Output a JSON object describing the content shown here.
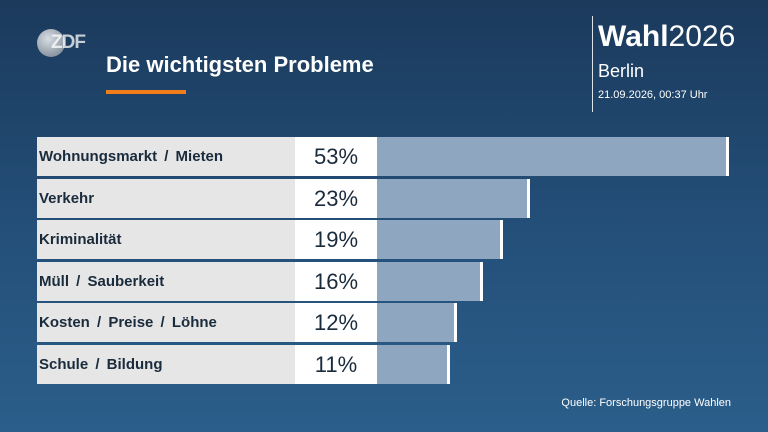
{
  "logo_text": "ZDF",
  "header": {
    "title": "Die wichtigsten Probleme",
    "brand_bold": "Wahl",
    "brand_year": "2026",
    "region": "Berlin",
    "timestamp": "21.09.2026, 00:37 Uhr"
  },
  "colors": {
    "background": "#24507a",
    "accent": "#f07d19",
    "bar": "#8ea6c0"
  },
  "chart_data": {
    "type": "bar",
    "orientation": "horizontal",
    "categories": [
      "Wohnungsmarkt / Mieten",
      "Verkehr",
      "Kriminalität",
      "Müll / Sauberkeit",
      "Kosten / Preise / Löhne",
      "Schule / Bildung"
    ],
    "values": [
      53,
      23,
      19,
      16,
      12,
      11
    ],
    "value_labels": [
      "53%",
      "23%",
      "19%",
      "16%",
      "12%",
      "11%"
    ],
    "unit": "%",
    "title": "Die wichtigsten Probleme",
    "xlabel": "",
    "ylabel": ""
  },
  "source": "Quelle: Forschungsgruppe Wahlen"
}
